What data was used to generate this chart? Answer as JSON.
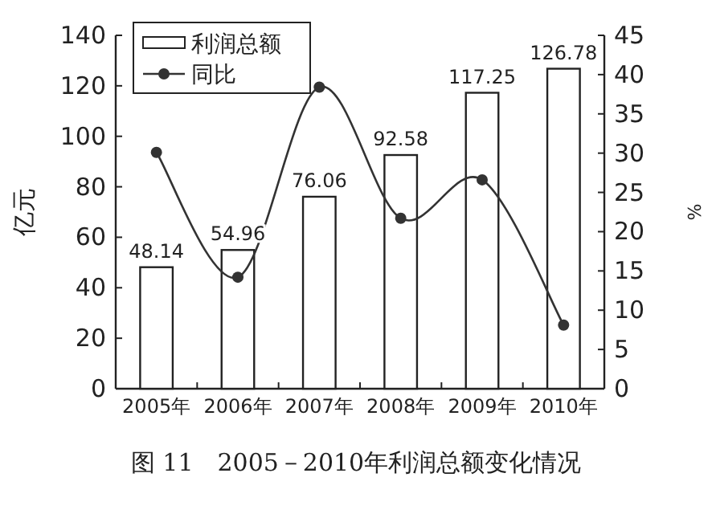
{
  "chart_data": {
    "type": "bar",
    "categories": [
      "2005年",
      "2006年",
      "2007年",
      "2008年",
      "2009年",
      "2010年"
    ],
    "series": [
      {
        "name": "利润总额",
        "color": "#ffffff",
        "values": [
          48.14,
          54.96,
          76.06,
          92.58,
          117.25,
          126.78
        ],
        "value_labels": [
          "48.14",
          "54.96",
          "76.06",
          "92.58",
          "117.25",
          "126.78"
        ]
      },
      {
        "name": "同比",
        "type": "line",
        "axis": "y2",
        "color": "#333333",
        "marker": "circle",
        "values": [
          30.1,
          14.2,
          38.4,
          21.7,
          26.6,
          8.1
        ]
      }
    ],
    "ylabel": "亿元",
    "y2label": "%",
    "ylim": [
      0,
      140
    ],
    "yticks": [
      0,
      20,
      40,
      60,
      80,
      100,
      120,
      140
    ],
    "y2lim": [
      0,
      45
    ],
    "y2ticks": [
      0,
      5,
      10,
      15,
      20,
      25,
      30,
      35,
      40,
      45
    ],
    "legend": "top left",
    "annotations": [
      "图 11　2005－2010年利润总额变化情况"
    ]
  }
}
